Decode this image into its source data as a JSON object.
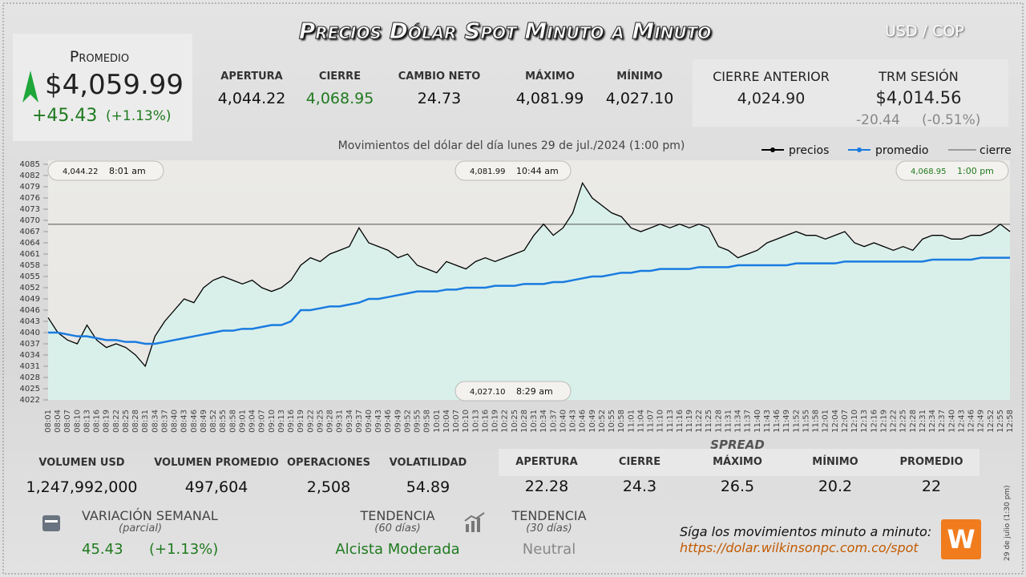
{
  "header": {
    "title": "Precios Dólar Spot Minuto a Minuto",
    "pair": "USD / COP"
  },
  "promedio": {
    "label": "Promedio",
    "value": "$4,059.99",
    "change": "+45.43",
    "change_pct": "(+1.13%)"
  },
  "stats": [
    {
      "label": "APERTURA",
      "value": "4,044.22"
    },
    {
      "label": "CIERRE",
      "value": "4,068.95"
    },
    {
      "label": "CAMBIO NETO",
      "value": "24.73"
    },
    {
      "label": "MÁXIMO",
      "value": "4,081.99"
    },
    {
      "label": "MÍNIMO",
      "value": "4,027.10"
    }
  ],
  "previous": {
    "label": "CIERRE ANTERIOR",
    "value": "4,024.90"
  },
  "trm": {
    "label": "TRM SESIÓN",
    "value": "$4,014.56",
    "change": "-20.44",
    "change_pct": "(-0.51%)"
  },
  "chart_data": {
    "type": "line",
    "subtitle": "Movimientos del dólar del día lunes 29 de jul./2024 (1:00 pm)",
    "categories": [
      "08:01",
      "08:04",
      "08:07",
      "08:10",
      "08:13",
      "08:16",
      "08:19",
      "08:22",
      "08:25",
      "08:28",
      "08:31",
      "08:34",
      "08:37",
      "08:40",
      "08:43",
      "08:46",
      "08:49",
      "08:52",
      "08:55",
      "08:58",
      "09:01",
      "09:04",
      "09:07",
      "09:10",
      "09:13",
      "09:16",
      "09:19",
      "09:22",
      "09:25",
      "09:28",
      "09:31",
      "09:34",
      "09:37",
      "09:40",
      "09:43",
      "09:46",
      "09:49",
      "09:52",
      "09:55",
      "09:58",
      "10:01",
      "10:04",
      "10:07",
      "10:10",
      "10:13",
      "10:16",
      "10:19",
      "10:22",
      "10:25",
      "10:28",
      "10:31",
      "10:34",
      "10:37",
      "10:40",
      "10:43",
      "10:46",
      "10:49",
      "10:52",
      "10:55",
      "10:58",
      "11:01",
      "11:04",
      "11:07",
      "11:10",
      "11:13",
      "11:16",
      "11:19",
      "11:22",
      "11:25",
      "11:28",
      "11:31",
      "11:34",
      "11:37",
      "11:40",
      "11:43",
      "11:46",
      "11:49",
      "11:52",
      "11:55",
      "11:58",
      "12:01",
      "12:04",
      "12:07",
      "12:10",
      "12:13",
      "12:16",
      "12:19",
      "12:22",
      "12:25",
      "12:28",
      "12:31",
      "12:34",
      "12:37",
      "12:40",
      "12:43",
      "12:46",
      "12:49",
      "12:52",
      "12:55",
      "12:58"
    ],
    "series": [
      {
        "name": "precios",
        "color": "#000000",
        "values": [
          4044,
          4040,
          4038,
          4037,
          4042,
          4038,
          4036,
          4037,
          4036,
          4034,
          4031,
          4039,
          4043,
          4046,
          4049,
          4048,
          4052,
          4054,
          4055,
          4054,
          4053,
          4054,
          4052,
          4051,
          4052,
          4054,
          4058,
          4060,
          4059,
          4061,
          4062,
          4063,
          4068,
          4064,
          4063,
          4062,
          4060,
          4061,
          4058,
          4057,
          4056,
          4059,
          4058,
          4057,
          4059,
          4060,
          4059,
          4060,
          4061,
          4062,
          4066,
          4069,
          4066,
          4068,
          4072,
          4080,
          4076,
          4074,
          4072,
          4071,
          4068,
          4067,
          4068,
          4069,
          4068,
          4069,
          4068,
          4069,
          4068,
          4063,
          4062,
          4060,
          4061,
          4062,
          4064,
          4065,
          4066,
          4067,
          4066,
          4066,
          4065,
          4066,
          4067,
          4064,
          4063,
          4064,
          4063,
          4062,
          4063,
          4062,
          4065,
          4066,
          4066,
          4065,
          4065,
          4066,
          4066,
          4067,
          4069,
          4067
        ]
      },
      {
        "name": "promedio",
        "color": "#1a7be0",
        "values": [
          4040,
          4040,
          4039.5,
          4039,
          4039,
          4038.5,
          4038,
          4038,
          4037.5,
          4037.5,
          4037,
          4037,
          4037.5,
          4038,
          4038.5,
          4039,
          4039.5,
          4040,
          4040.5,
          4040.5,
          4041,
          4041,
          4041.5,
          4042,
          4042,
          4043,
          4046,
          4046,
          4046.5,
          4047,
          4047,
          4047.5,
          4048,
          4049,
          4049,
          4049.5,
          4050,
          4050.5,
          4051,
          4051,
          4051,
          4051.5,
          4051.5,
          4052,
          4052,
          4052,
          4052.5,
          4052.5,
          4052.5,
          4053,
          4053,
          4053,
          4053.5,
          4053.5,
          4054,
          4054.5,
          4055,
          4055,
          4055.5,
          4056,
          4056,
          4056.5,
          4056.5,
          4057,
          4057,
          4057,
          4057,
          4057.5,
          4057.5,
          4057.5,
          4057.5,
          4058,
          4058,
          4058,
          4058,
          4058,
          4058,
          4058.5,
          4058.5,
          4058.5,
          4058.5,
          4058.5,
          4059,
          4059,
          4059,
          4059,
          4059,
          4059,
          4059,
          4059,
          4059,
          4059.5,
          4059.5,
          4059.5,
          4059.5,
          4059.5,
          4060,
          4060,
          4060,
          4060
        ]
      }
    ],
    "reference_line": {
      "name": "cierre",
      "value": 4068.95,
      "color": "#555555"
    },
    "fill_color": "#d9f0ea",
    "ylim": [
      4022,
      4085
    ],
    "yticks": [
      4022,
      4025,
      4028,
      4031,
      4034,
      4037,
      4040,
      4043,
      4046,
      4049,
      4052,
      4055,
      4058,
      4061,
      4064,
      4067,
      4070,
      4073,
      4076,
      4079,
      4082,
      4085
    ],
    "grid": false,
    "legend": "top-right",
    "annotations": [
      {
        "price": "4,044.22",
        "time": "8:01 am"
      },
      {
        "price": "4,081.99",
        "time": "10:44 am"
      },
      {
        "price": "4,068.95",
        "time": "1:00 pm"
      },
      {
        "price": "4,027.10",
        "time": "8:29 am"
      }
    ]
  },
  "bottom_stats": [
    {
      "label": "VOLUMEN USD",
      "value": "1,247,992,000"
    },
    {
      "label": "VOLUMEN PROMEDIO",
      "value": "497,604"
    },
    {
      "label": "OPERACIONES",
      "value": "2,508"
    },
    {
      "label": "VOLATILIDAD",
      "value": "54.89"
    }
  ],
  "spread": {
    "title": "SPREAD",
    "items": [
      {
        "label": "APERTURA",
        "value": "22.28"
      },
      {
        "label": "CIERRE",
        "value": "24.3"
      },
      {
        "label": "MÁXIMO",
        "value": "26.5"
      },
      {
        "label": "MÍNIMO",
        "value": "20.2"
      },
      {
        "label": "PROMEDIO",
        "value": "22"
      }
    ]
  },
  "weekly": {
    "label": "VARIACIÓN SEMANAL",
    "note": "(parcial)",
    "value": "45.43",
    "pct": "(+1.13%)"
  },
  "trend60": {
    "label": "TENDENCIA",
    "note": "(60 días)",
    "value": "Alcista Moderada"
  },
  "trend30": {
    "label": "TENDENCIA",
    "note": "(30 días)",
    "value": "Neutral"
  },
  "footer": {
    "text": "Síga los movimientos minuto a minuto:",
    "url": "https://dolar.wilkinsonpc.com.co/spot",
    "stamp": "29 de julio (1:30 pm)"
  }
}
